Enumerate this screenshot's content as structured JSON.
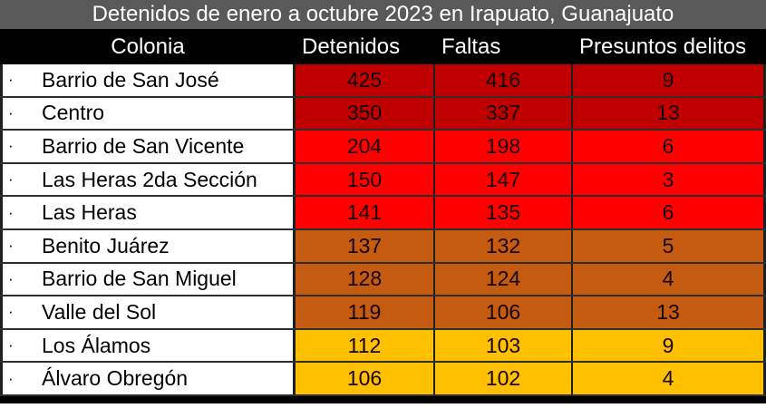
{
  "title": "Detenidos de enero a octubre 2023 en Irapuato, Guanajuato",
  "bullet": "·",
  "colors": {
    "title_bar_bg": "#595959",
    "title_text": "#ffffff",
    "header_bg": "#000000",
    "header_text": "#ffffff",
    "dark_red": "#C00000",
    "red": "#FF0000",
    "orange": "#C55A11",
    "yellow": "#FFC000",
    "border": "#1f1f1f"
  },
  "chart_data": {
    "type": "table",
    "title": "Detenidos de enero a octubre 2023 en Irapuato, Guanajuato",
    "columns": [
      "Colonia",
      "Detenidos",
      "Faltas",
      "Presuntos delitos"
    ],
    "rows": [
      {
        "colonia": "Barrio de San José",
        "detenidos": 425,
        "faltas": 416,
        "presuntos_delitos": 9,
        "color": "#C00000"
      },
      {
        "colonia": "Centro",
        "detenidos": 350,
        "faltas": 337,
        "presuntos_delitos": 13,
        "color": "#C00000"
      },
      {
        "colonia": "Barrio de San Vicente",
        "detenidos": 204,
        "faltas": 198,
        "presuntos_delitos": 6,
        "color": "#FF0000"
      },
      {
        "colonia": "Las Heras 2da Sección",
        "detenidos": 150,
        "faltas": 147,
        "presuntos_delitos": 3,
        "color": "#FF0000"
      },
      {
        "colonia": "Las Heras",
        "detenidos": 141,
        "faltas": 135,
        "presuntos_delitos": 6,
        "color": "#FF0000"
      },
      {
        "colonia": "Benito Juárez",
        "detenidos": 137,
        "faltas": 132,
        "presuntos_delitos": 5,
        "color": "#C55A11"
      },
      {
        "colonia": "Barrio de San Miguel",
        "detenidos": 128,
        "faltas": 124,
        "presuntos_delitos": 4,
        "color": "#C55A11"
      },
      {
        "colonia": "Valle del Sol",
        "detenidos": 119,
        "faltas": 106,
        "presuntos_delitos": 13,
        "color": "#C55A11"
      },
      {
        "colonia": "Los Álamos",
        "detenidos": 112,
        "faltas": 103,
        "presuntos_delitos": 9,
        "color": "#FFC000"
      },
      {
        "colonia": "Álvaro Obregón",
        "detenidos": 106,
        "faltas": 102,
        "presuntos_delitos": 4,
        "color": "#FFC000"
      }
    ]
  }
}
